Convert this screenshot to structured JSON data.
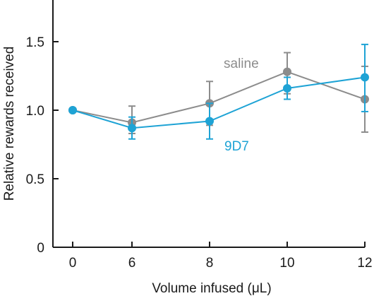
{
  "chart_data": {
    "type": "line",
    "xlabel": "Volume infused (μL)",
    "ylabel": "Relative rewards received",
    "x": [
      0,
      6,
      8,
      10,
      12
    ],
    "x_tick_labels": [
      "0",
      "6",
      "8",
      "10",
      "12"
    ],
    "y_tick_labels": [
      "0",
      "0.5",
      "1.0",
      "1.5"
    ],
    "ylim": [
      0,
      1.8
    ],
    "grid": false,
    "legend": "inline labels",
    "series": [
      {
        "name": "saline",
        "color": "#8c8c8c",
        "values": [
          1.0,
          0.91,
          1.05,
          1.28,
          1.08
        ],
        "error_low": [
          1.0,
          0.83,
          0.89,
          1.12,
          0.84
        ],
        "error_high": [
          1.0,
          1.03,
          1.21,
          1.42,
          1.32
        ]
      },
      {
        "name": "9D7",
        "color": "#1ea3d5",
        "values": [
          1.0,
          0.87,
          0.92,
          1.16,
          1.24
        ],
        "error_low": [
          1.0,
          0.79,
          0.79,
          1.08,
          0.99
        ],
        "error_high": [
          1.0,
          0.95,
          1.05,
          1.24,
          1.48
        ]
      }
    ]
  }
}
